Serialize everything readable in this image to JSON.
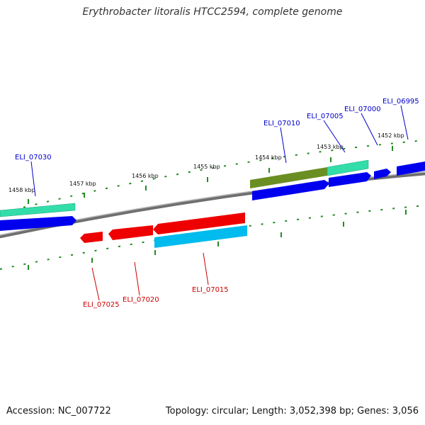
{
  "title": "Erythrobacter litoralis HTCC2594, complete genome",
  "footer": {
    "accession": "Accession: NC_007722",
    "summary": "Topology: circular; Length: 3,052,398 bp; Genes: 3,056"
  },
  "scale_labels": [
    "1458 kbp",
    "1457 kbp",
    "1456 kbp",
    "1455 kbp",
    "1454 kbp",
    "1453 kbp",
    "1452 kbp"
  ],
  "gene_labels": {
    "forward": [
      "ELI_07030",
      "ELI_07010",
      "ELI_07005",
      "ELI_07000",
      "ELI_06995"
    ],
    "reverse": [
      "ELI_07025",
      "ELI_07020",
      "ELI_07015"
    ]
  },
  "colors": {
    "forward_label": "#0000cc",
    "reverse_label": "#cc0000",
    "cds_forward": "#0000ee",
    "cds_reverse": "#ee0000",
    "rna_green": "#33ddaa",
    "cds_olive": "#6b8e23",
    "cds_cyan": "#00bbee",
    "backbone": "#888888",
    "tick": "#228b22"
  }
}
